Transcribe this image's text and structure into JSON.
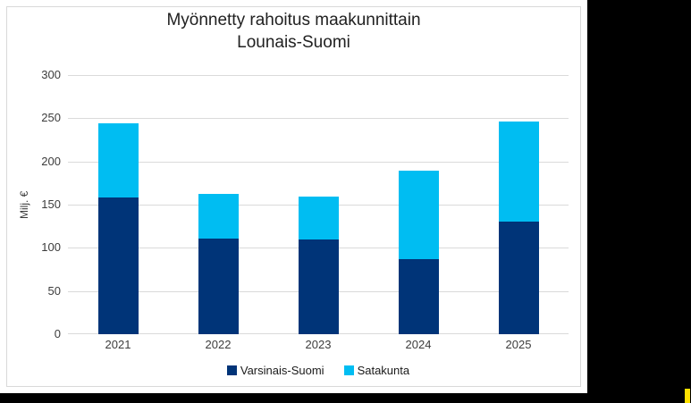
{
  "ui": {
    "surround_color": "#000000",
    "page_color": "#ffffff",
    "chart_border_color": "#d9d9d9",
    "gridline_color": "#dadada",
    "yellow_indicator_color": "#ffe000"
  },
  "chart_data": {
    "type": "bar",
    "stacked": true,
    "title_line1": "Myönnetty rahoitus maakunnittain",
    "title_line2": "Lounais-Suomi",
    "ylabel": "Milj. €",
    "xlabel": "",
    "categories": [
      "2021",
      "2022",
      "2023",
      "2024",
      "2025"
    ],
    "series": [
      {
        "name": "Varsinais-Suomi",
        "color": "#003478",
        "values": [
          158,
          111,
          110,
          87,
          130
        ]
      },
      {
        "name": "Satakunta",
        "color": "#00bdf2",
        "values": [
          86,
          52,
          50,
          102,
          116
        ]
      }
    ],
    "totals": [
      244,
      163,
      160,
      189,
      246
    ],
    "ylim": [
      0,
      300
    ],
    "yticks": [
      0,
      50,
      100,
      150,
      200,
      250,
      300
    ],
    "grid": "horizontal",
    "legend_position": "bottom"
  }
}
